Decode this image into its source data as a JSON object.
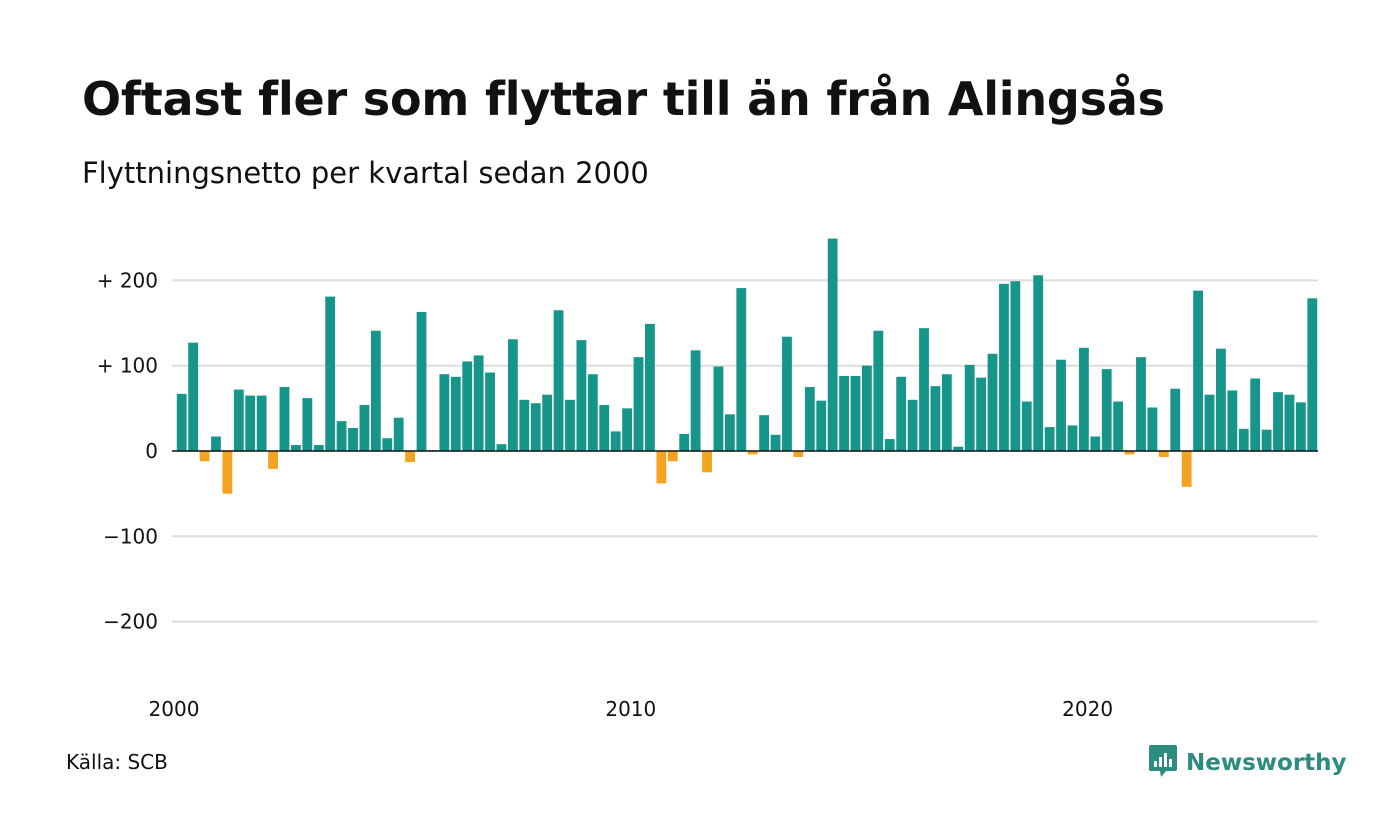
{
  "header": {
    "title": "Oftast fler som flyttar till än från Alingsås",
    "subtitle": "Flyttningsnetto per kvartal sedan 2000"
  },
  "footer": {
    "source": "Källa: SCB",
    "brand": "Newsworthy",
    "brand_icon": "bar-chart-speech-bubble-icon"
  },
  "colors": {
    "positive": "#16968a",
    "negative": "#f4a321",
    "grid": "#dddddd",
    "zero_line": "#111111",
    "brand": "#2c8c80"
  },
  "chart_data": {
    "type": "bar",
    "xlabel": "",
    "ylabel": "",
    "ylim": [
      -200,
      250
    ],
    "y_ticks": [
      200,
      100,
      0,
      -100,
      -200
    ],
    "y_tick_labels": [
      "+ 200",
      "+ 100",
      "0",
      "−100",
      "−200"
    ],
    "x_tick_labels": [
      {
        "label": "2000",
        "year": 2000
      },
      {
        "label": "2010",
        "year": 2010
      },
      {
        "label": "2020",
        "year": 2020
      }
    ],
    "grid": true,
    "start_year": 2000,
    "start_quarter": 1,
    "values": [
      67,
      127,
      -12,
      17,
      -50,
      72,
      65,
      65,
      -21,
      75,
      7,
      62,
      7,
      181,
      35,
      27,
      54,
      141,
      15,
      39,
      -13,
      163,
      1,
      90,
      87,
      105,
      112,
      92,
      8,
      131,
      60,
      56,
      66,
      165,
      60,
      130,
      90,
      54,
      23,
      50,
      110,
      149,
      -38,
      -12,
      20,
      118,
      -25,
      99,
      43,
      191,
      -4,
      42,
      19,
      134,
      -7,
      75,
      59,
      249,
      88,
      88,
      100,
      141,
      14,
      87,
      60,
      144,
      76,
      90,
      5,
      101,
      86,
      114,
      196,
      199,
      58,
      206,
      28,
      107,
      30,
      121,
      17,
      96,
      58,
      -4,
      110,
      51,
      -7,
      73,
      -42,
      188,
      66,
      120,
      71,
      26,
      85,
      25,
      69,
      66,
      57,
      179
    ]
  }
}
